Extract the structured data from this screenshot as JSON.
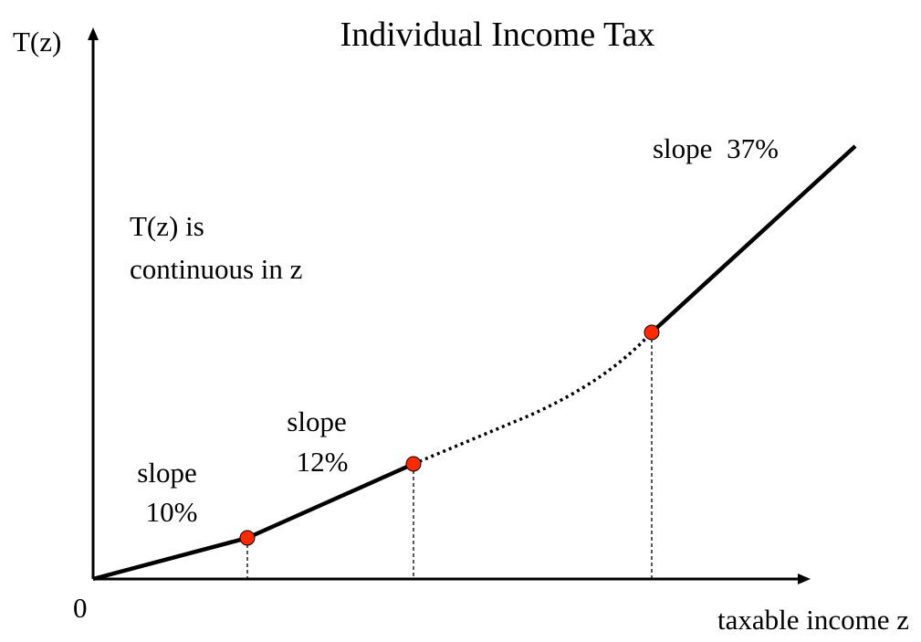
{
  "title": "Individual Income Tax",
  "y_axis_label": "T(z)",
  "x_axis_label": "taxable income z",
  "origin_label": "0",
  "note": {
    "line1": "T(z) is",
    "line2": "continuous in z"
  },
  "segments": [
    {
      "word": "slope",
      "rate": "10%"
    },
    {
      "word": "slope",
      "rate": "12%"
    },
    {
      "word": "slope",
      "rate": "37%"
    }
  ],
  "colors": {
    "line": "#000000",
    "kink_point": "#ff2a00",
    "background": "#ffffff"
  }
}
